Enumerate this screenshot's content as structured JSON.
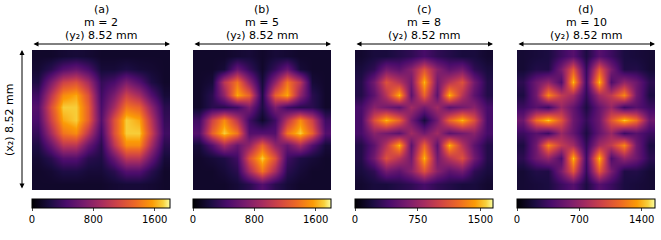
{
  "chart_data": [
    {
      "type": "heatmap",
      "label": "(a)",
      "title": "m = 2",
      "x_label": "(y₂) 8.52 mm",
      "y_label": "(x₂) 8.52 mm",
      "tick_labels": false,
      "color": "inferno",
      "cells": [
        [
          150,
          150,
          180,
          200,
          180,
          150,
          150,
          150,
          150,
          150,
          150
        ],
        [
          180,
          300,
          500,
          600,
          450,
          200,
          200,
          250,
          200,
          180,
          150
        ],
        [
          250,
          700,
          1100,
          1200,
          900,
          350,
          450,
          700,
          500,
          250,
          150
        ],
        [
          400,
          1000,
          1500,
          1600,
          1200,
          400,
          700,
          1100,
          900,
          500,
          200
        ],
        [
          500,
          1200,
          1700,
          1700,
          1300,
          450,
          900,
          1400,
          1300,
          800,
          300
        ],
        [
          450,
          1100,
          1600,
          1700,
          1300,
          500,
          1200,
          1700,
          1600,
          1000,
          350
        ],
        [
          350,
          900,
          1400,
          1500,
          1000,
          400,
          1200,
          1700,
          1700,
          1100,
          400
        ],
        [
          250,
          600,
          1000,
          1000,
          600,
          300,
          1000,
          1500,
          1500,
          900,
          300
        ],
        [
          180,
          300,
          500,
          500,
          300,
          250,
          600,
          1000,
          1000,
          600,
          200
        ],
        [
          150,
          180,
          250,
          250,
          200,
          200,
          300,
          500,
          500,
          300,
          150
        ],
        [
          150,
          150,
          150,
          150,
          150,
          150,
          180,
          200,
          200,
          180,
          150
        ]
      ],
      "colorbar": {
        "range": [
          0,
          1800
        ],
        "ticks": [
          0,
          800,
          1600
        ]
      }
    },
    {
      "type": "heatmap",
      "label": "(b)",
      "title": "m = 5",
      "x_label": "(y₂) 8.52 mm",
      "tick_labels": false,
      "color": "inferno",
      "cells": [
        [
          150,
          150,
          150,
          180,
          200,
          150,
          200,
          180,
          150,
          150,
          150
        ],
        [
          150,
          150,
          200,
          600,
          350,
          150,
          350,
          600,
          200,
          150,
          150
        ],
        [
          150,
          200,
          1000,
          1400,
          800,
          200,
          800,
          1400,
          1000,
          200,
          150
        ],
        [
          150,
          300,
          800,
          1600,
          1300,
          250,
          1300,
          1600,
          800,
          300,
          150
        ],
        [
          150,
          300,
          300,
          400,
          700,
          250,
          700,
          400,
          300,
          300,
          150
        ],
        [
          400,
          1100,
          1500,
          1000,
          400,
          150,
          400,
          1000,
          1500,
          1100,
          400
        ],
        [
          500,
          1300,
          1700,
          1400,
          500,
          500,
          500,
          1400,
          1700,
          1300,
          500
        ],
        [
          200,
          500,
          900,
          600,
          800,
          1300,
          800,
          600,
          900,
          500,
          200
        ],
        [
          150,
          200,
          250,
          400,
          1200,
          1700,
          1200,
          400,
          250,
          200,
          150
        ],
        [
          150,
          150,
          200,
          300,
          900,
          1400,
          900,
          300,
          200,
          150,
          150
        ],
        [
          150,
          150,
          150,
          200,
          300,
          500,
          300,
          200,
          150,
          150,
          150
        ]
      ],
      "colorbar": {
        "range": [
          0,
          1800
        ],
        "ticks": [
          0,
          800,
          1600
        ]
      }
    },
    {
      "type": "heatmap",
      "label": "(c)",
      "title": "m = 8",
      "x_label": "(y₂) 8.52 mm",
      "tick_labels": false,
      "color": "inferno",
      "cells": [
        [
          150,
          200,
          200,
          250,
          300,
          400,
          300,
          250,
          200,
          200,
          150
        ],
        [
          200,
          300,
          600,
          500,
          700,
          1100,
          700,
          500,
          600,
          300,
          200
        ],
        [
          250,
          600,
          1100,
          900,
          600,
          1500,
          600,
          900,
          1100,
          600,
          250
        ],
        [
          250,
          500,
          900,
          1500,
          500,
          1200,
          500,
          1500,
          900,
          500,
          250
        ],
        [
          400,
          700,
          600,
          500,
          800,
          600,
          800,
          500,
          600,
          700,
          400
        ],
        [
          400,
          1100,
          1500,
          1200,
          600,
          200,
          600,
          1200,
          1500,
          1100,
          400
        ],
        [
          400,
          700,
          600,
          500,
          800,
          600,
          800,
          500,
          600,
          700,
          400
        ],
        [
          250,
          500,
          900,
          1500,
          500,
          1200,
          500,
          1500,
          900,
          500,
          250
        ],
        [
          250,
          600,
          1100,
          900,
          600,
          1500,
          600,
          900,
          1100,
          600,
          250
        ],
        [
          200,
          300,
          600,
          500,
          700,
          1100,
          700,
          500,
          600,
          300,
          200
        ],
        [
          150,
          200,
          200,
          250,
          300,
          400,
          300,
          250,
          200,
          200,
          150
        ]
      ],
      "colorbar": {
        "range": [
          0,
          1650
        ],
        "ticks": [
          0,
          750,
          1500
        ]
      }
    },
    {
      "type": "heatmap",
      "label": "(d)",
      "title": "m = 10",
      "x_label": "(y₂) 8.52 mm",
      "tick_labels": false,
      "color": "inferno",
      "cells": [
        [
          160,
          180,
          200,
          330,
          440,
          210,
          440,
          330,
          200,
          180,
          160
        ],
        [
          160,
          230,
          220,
          590,
          1070,
          305,
          1070,
          590,
          220,
          230,
          160
        ],
        [
          270,
          540,
          700,
          410,
          1420,
          345,
          1420,
          410,
          700,
          540,
          270
        ],
        [
          210,
          560,
          1280,
          890,
          760,
          290,
          760,
          890,
          1280,
          560,
          210
        ],
        [
          330,
          450,
          340,
          720,
          500,
          210,
          500,
          720,
          340,
          450,
          330
        ],
        [
          540,
          1190,
          1450,
          1060,
          540,
          300,
          540,
          1060,
          1450,
          1190,
          540
        ],
        [
          330,
          450,
          340,
          720,
          500,
          210,
          500,
          720,
          340,
          450,
          330
        ],
        [
          210,
          560,
          1280,
          890,
          760,
          290,
          760,
          890,
          1280,
          560,
          210
        ],
        [
          270,
          540,
          700,
          410,
          1420,
          345,
          1420,
          410,
          700,
          540,
          270
        ],
        [
          160,
          230,
          220,
          590,
          1070,
          305,
          1070,
          590,
          220,
          230,
          160
        ],
        [
          160,
          180,
          200,
          330,
          440,
          210,
          440,
          330,
          200,
          180,
          160
        ]
      ],
      "colorbar": {
        "range": [
          0,
          1550
        ],
        "ticks": [
          0,
          700,
          1400
        ]
      }
    }
  ]
}
